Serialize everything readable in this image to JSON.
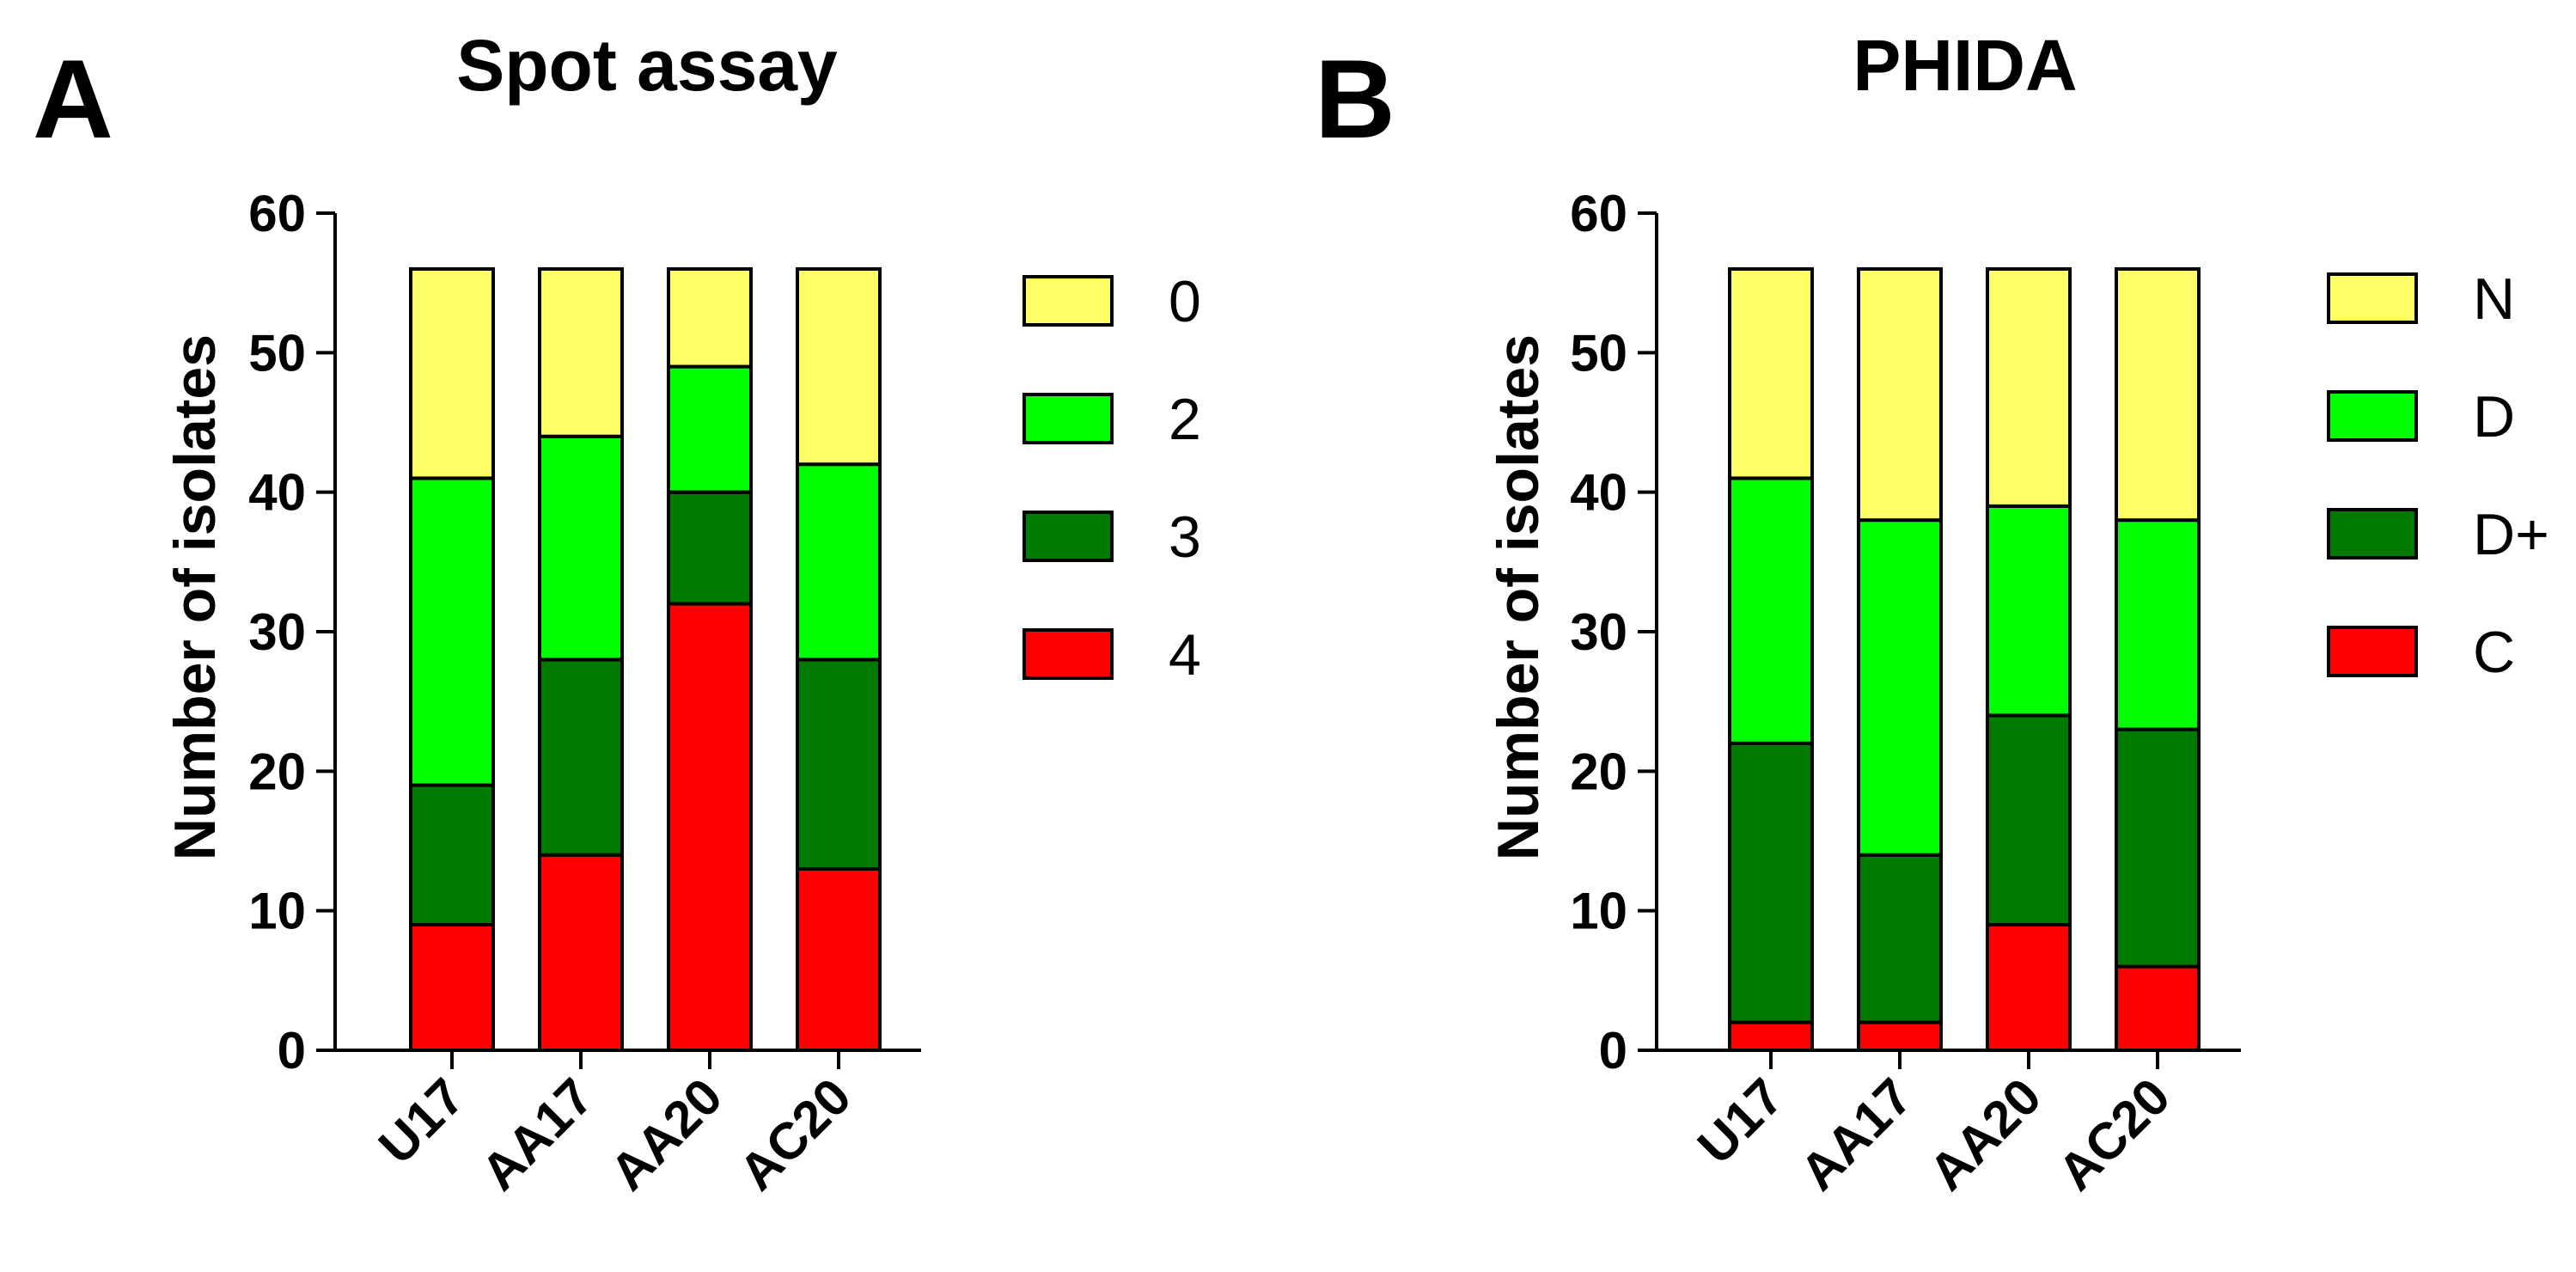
{
  "chart_data": [
    {
      "type": "bar",
      "stacked": true,
      "panel_label": "A",
      "title": "Spot assay",
      "xlabel": "",
      "ylabel": "Number of isolates",
      "ylim": [
        0,
        60
      ],
      "yticks": [
        0,
        10,
        20,
        30,
        40,
        50,
        60
      ],
      "categories": [
        "U17",
        "AA17",
        "AA20",
        "AC20"
      ],
      "series": [
        {
          "name": "4",
          "color": "#ff0000",
          "values": [
            9,
            14,
            32,
            13
          ]
        },
        {
          "name": "3",
          "color": "#007a00",
          "values": [
            10,
            14,
            8,
            15
          ]
        },
        {
          "name": "2",
          "color": "#00ff00",
          "values": [
            22,
            16,
            9,
            14
          ]
        },
        {
          "name": "0",
          "color": "#ffff66",
          "values": [
            15,
            12,
            7,
            14
          ]
        }
      ],
      "legend": [
        "0",
        "2",
        "3",
        "4"
      ],
      "legend_position": "right"
    },
    {
      "type": "bar",
      "stacked": true,
      "panel_label": "B",
      "title": "PHIDA",
      "xlabel": "",
      "ylabel": "Number of isolates",
      "ylim": [
        0,
        60
      ],
      "yticks": [
        0,
        10,
        20,
        30,
        40,
        50,
        60
      ],
      "categories": [
        "U17",
        "AA17",
        "AA20",
        "AC20"
      ],
      "series": [
        {
          "name": "C",
          "color": "#ff0000",
          "values": [
            2,
            2,
            9,
            6
          ]
        },
        {
          "name": "D+",
          "color": "#007a00",
          "values": [
            20,
            12,
            15,
            17
          ]
        },
        {
          "name": "D",
          "color": "#00ff00",
          "values": [
            19,
            24,
            15,
            15
          ]
        },
        {
          "name": "N",
          "color": "#ffff66",
          "values": [
            15,
            18,
            17,
            18
          ]
        }
      ],
      "legend": [
        "N",
        "D",
        "D+",
        "C"
      ],
      "legend_position": "right"
    }
  ]
}
